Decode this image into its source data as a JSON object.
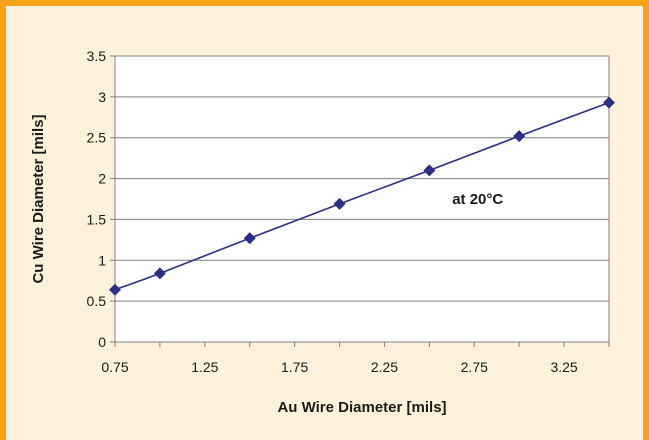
{
  "chart_data": {
    "type": "line",
    "title": "",
    "xlabel": "Au Wire Diameter [mils]",
    "ylabel": "Cu Wire Diameter [mils]",
    "xlim": [
      0.75,
      3.5
    ],
    "ylim": [
      0,
      3.5
    ],
    "x_ticks": [
      "0.75",
      "1.25",
      "1.75",
      "2.25",
      "2.75",
      "3.25"
    ],
    "y_ticks": [
      "0",
      "0.5",
      "1",
      "1.5",
      "2",
      "2.5",
      "3",
      "3.5"
    ],
    "x_tick_values": [
      0.75,
      1.25,
      1.75,
      2.25,
      2.75,
      3.25
    ],
    "y_tick_values": [
      0,
      0.5,
      1,
      1.5,
      2,
      2.5,
      3,
      3.5
    ],
    "grid": "horizontal",
    "marker": "diamond",
    "series": [
      {
        "x": [
          0.75,
          1.0,
          1.5,
          2.0,
          2.5,
          3.0,
          3.5
        ],
        "y": [
          0.64,
          0.84,
          1.27,
          1.69,
          2.1,
          2.52,
          2.93
        ]
      }
    ],
    "annotations": [
      {
        "text": "at 20°C",
        "x": 2.95,
        "y": 1.75
      }
    ]
  },
  "colors": {
    "frame": "#f6a11a",
    "background": "#fdf1dc",
    "plot_area": "#ffffff",
    "series": "#2b2f86"
  }
}
